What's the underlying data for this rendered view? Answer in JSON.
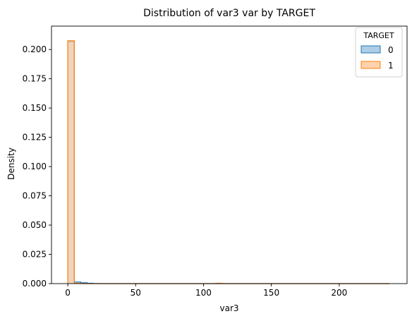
{
  "chart_data": {
    "type": "histogram",
    "title": "Distribution of var3 var by TARGET",
    "xlabel": "var3",
    "ylabel": "Density",
    "xlim": [
      -12,
      250
    ],
    "ylim": [
      0,
      0.22
    ],
    "x_ticks": [
      0,
      50,
      100,
      150,
      200
    ],
    "y_ticks": [
      0.0,
      0.025,
      0.05,
      0.075,
      0.1,
      0.125,
      0.15,
      0.175,
      0.2
    ],
    "y_tick_labels": [
      "0.000",
      "0.025",
      "0.050",
      "0.075",
      "0.100",
      "0.125",
      "0.150",
      "0.175",
      "0.200"
    ],
    "bins": [
      0,
      4.76,
      9.52,
      14.28,
      19.04,
      23.8
    ],
    "bin_width": 4.76,
    "grid": false,
    "legend": {
      "title": "TARGET",
      "placement": "top-right"
    },
    "series": [
      {
        "name": "0",
        "color": "#1f77b4",
        "fill": "#aecde6",
        "step_x": [
          0,
          4.76,
          9.52,
          14.28,
          19.04,
          23.8,
          237
        ],
        "step_y": [
          0.2066,
          0.0014,
          0.0008,
          0.0003,
          0.0001,
          0.0,
          0.0
        ]
      },
      {
        "name": "1",
        "color": "#ff7f0e",
        "fill": "#ffd2ad",
        "step_x": [
          0,
          4.76,
          9.52,
          109,
          113.76,
          237
        ],
        "step_y": [
          0.2075,
          0.0003,
          0.0,
          0.0003,
          0.0,
          0.0
        ]
      }
    ]
  }
}
